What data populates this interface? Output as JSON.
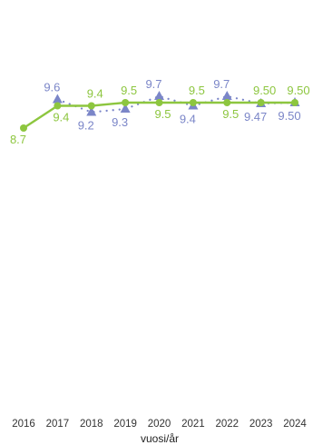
{
  "chart_data": {
    "type": "line",
    "title": "",
    "xlabel": "vuosi/år",
    "ylabel": "",
    "categories": [
      "2016",
      "2017",
      "2018",
      "2019",
      "2020",
      "2021",
      "2022",
      "2023",
      "2024"
    ],
    "ylim": [
      8.0,
      10.5
    ],
    "grid": false,
    "legend": "none",
    "series": [
      {
        "color": "#8dc63f",
        "line_style": "solid",
        "marker": "circle",
        "values": [
          8.7,
          9.4,
          9.4,
          9.5,
          9.5,
          9.5,
          9.5,
          9.5,
          9.5
        ],
        "labels": [
          "8.7",
          "9.4",
          "9.4",
          "9.5",
          "9.5",
          "9.5",
          "9.5",
          "9.50",
          "9.50"
        ]
      },
      {
        "color": "#7b86c8",
        "line_style": "dotted",
        "marker": "triangle",
        "values": [
          null,
          9.6,
          9.2,
          9.3,
          9.7,
          9.4,
          9.7,
          9.47,
          9.5
        ],
        "labels": [
          "",
          "9.6",
          "9.2",
          "9.3",
          "9.7",
          "9.4",
          "9.7",
          "9.47",
          "9.50"
        ]
      }
    ]
  }
}
